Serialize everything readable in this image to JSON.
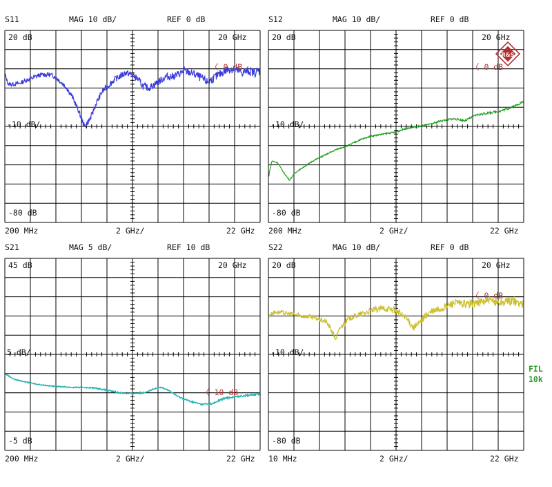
{
  "colors": {
    "s11": "#3b3bdc",
    "s12": "#1f9e1f",
    "s21": "#20b0b0",
    "s22": "#ccc030",
    "ref_marker": "#b03030",
    "grid": "#000000",
    "logo": "#b03030",
    "filter_label": "#2a9a2a"
  },
  "logo": {
    "text": "R&S"
  },
  "filter": {
    "line1": "FIL",
    "line2": "10k"
  },
  "chart_data": [
    {
      "type": "line",
      "param": "S11",
      "mag_label": "MAG 10 dB/",
      "ref_label": "REF 0 dB",
      "top_left": "20 dB",
      "top_right": "20 GHz",
      "mid_label": "-10 dB/",
      "bottom_label": "-80 dB",
      "ref_marker": "0 dB",
      "x_start": "200 MHz",
      "x_div": "2 GHz/",
      "x_stop": "22 GHz",
      "xlim": [
        0.2,
        22
      ],
      "ylim": [
        -80,
        20
      ],
      "ref_level": 0,
      "series": [
        {
          "x": [
            0.2,
            0.5,
            1,
            1.5,
            2,
            2.5,
            3,
            3.5,
            4,
            4.5,
            5,
            5.5,
            6,
            6.5,
            7,
            7.5,
            8,
            8.5,
            9,
            9.5,
            10,
            10.5,
            11,
            11.5,
            12,
            12.5,
            13,
            13.5,
            14,
            14.5,
            15,
            15.5,
            16,
            16.5,
            17,
            17.5,
            18,
            18.5,
            19,
            19.5,
            20,
            20.5,
            21,
            21.5,
            22
          ],
          "y": [
            -3,
            -8,
            -8,
            -7.5,
            -6,
            -5,
            -3.5,
            -3,
            -3,
            -4,
            -7,
            -10,
            -15,
            -22,
            -30,
            -26,
            -18,
            -12,
            -9,
            -6,
            -4,
            -2,
            -3,
            -5,
            -9,
            -10,
            -8,
            -6,
            -4,
            -4,
            -3,
            -1,
            -2,
            -3,
            -5,
            -7,
            -5,
            -3,
            -1,
            0,
            -1,
            -2,
            -1,
            -2,
            -1
          ]
        }
      ]
    },
    {
      "type": "line",
      "param": "S12",
      "mag_label": "MAG 10 dB/",
      "ref_label": "REF 0 dB",
      "top_left": "20 dB",
      "top_right": "20 GHz",
      "mid_label": "-10 dB/",
      "bottom_label": "-80 dB",
      "ref_marker": "0 dB",
      "x_start": "200 MHz",
      "x_div": "2 GHz/",
      "x_stop": "22 GHz",
      "xlim": [
        0.2,
        22
      ],
      "ylim": [
        -80,
        20
      ],
      "ref_level": 0,
      "series": [
        {
          "x": [
            0.2,
            0.5,
            1,
            1.5,
            2,
            2.5,
            3,
            3.5,
            4,
            5,
            6,
            7,
            8,
            9,
            10,
            11,
            12,
            13,
            14,
            15,
            16,
            17,
            18,
            19,
            20,
            21,
            22
          ],
          "y": [
            -56,
            -48,
            -49,
            -54,
            -58,
            -54,
            -52,
            -50,
            -48,
            -45,
            -42,
            -40,
            -37,
            -35,
            -34,
            -33,
            -31,
            -30,
            -29,
            -27,
            -26,
            -27,
            -24,
            -23,
            -22,
            -20,
            -17
          ]
        }
      ]
    },
    {
      "type": "line",
      "param": "S21",
      "mag_label": "MAG 5 dB/",
      "ref_label": "REF 10 dB",
      "top_left": "45 dB",
      "top_right": "20 GHz",
      "mid_label": "5 dB/",
      "bottom_label": "-5 dB",
      "ref_marker": "10 dB",
      "x_start": "200 MHz",
      "x_div": "2 GHz/",
      "x_stop": "22 GHz",
      "xlim": [
        0.2,
        22
      ],
      "ylim": [
        -5,
        45
      ],
      "ref_level": 10,
      "series": [
        {
          "x": [
            0.2,
            1,
            2,
            3,
            4,
            5,
            6,
            7,
            8,
            9,
            10,
            11,
            12,
            13,
            13.5,
            14,
            15,
            16,
            17,
            18,
            18.5,
            19,
            20,
            21,
            22
          ],
          "y": [
            15,
            13.5,
            12.8,
            12.2,
            11.8,
            11.6,
            11.4,
            11.4,
            11.2,
            10.6,
            10,
            9.8,
            10,
            11,
            11.4,
            11,
            9,
            7.8,
            7,
            7.2,
            8,
            8.6,
            9,
            9.4,
            9.6
          ]
        }
      ]
    },
    {
      "type": "line",
      "param": "S22",
      "mag_label": "MAG 10 dB/",
      "ref_label": "REF 0 dB",
      "top_left": "20 dB",
      "top_right": "20 GHz",
      "mid_label": "-10 dB/",
      "bottom_label": "-80 dB",
      "ref_marker": "0 dB",
      "x_start": "10 MHz",
      "x_div": "2 GHz/",
      "x_stop": "22 GHz",
      "xlim": [
        0.01,
        22
      ],
      "ylim": [
        -80,
        20
      ],
      "ref_level": 0,
      "series": [
        {
          "x": [
            0.01,
            0.5,
            1,
            2,
            3,
            4,
            5,
            5.5,
            5.8,
            6.2,
            7,
            8,
            9,
            10,
            11,
            12,
            12.5,
            13,
            13.5,
            14,
            15,
            16,
            17,
            18,
            19,
            20,
            21,
            22
          ],
          "y": [
            -10,
            -8,
            -8,
            -9,
            -10,
            -11,
            -13,
            -18,
            -22,
            -16,
            -11,
            -9,
            -7,
            -6,
            -7,
            -12,
            -16,
            -14,
            -10,
            -8,
            -6,
            -3,
            -4,
            -3,
            -2,
            -3,
            -2,
            -4
          ]
        }
      ]
    }
  ]
}
